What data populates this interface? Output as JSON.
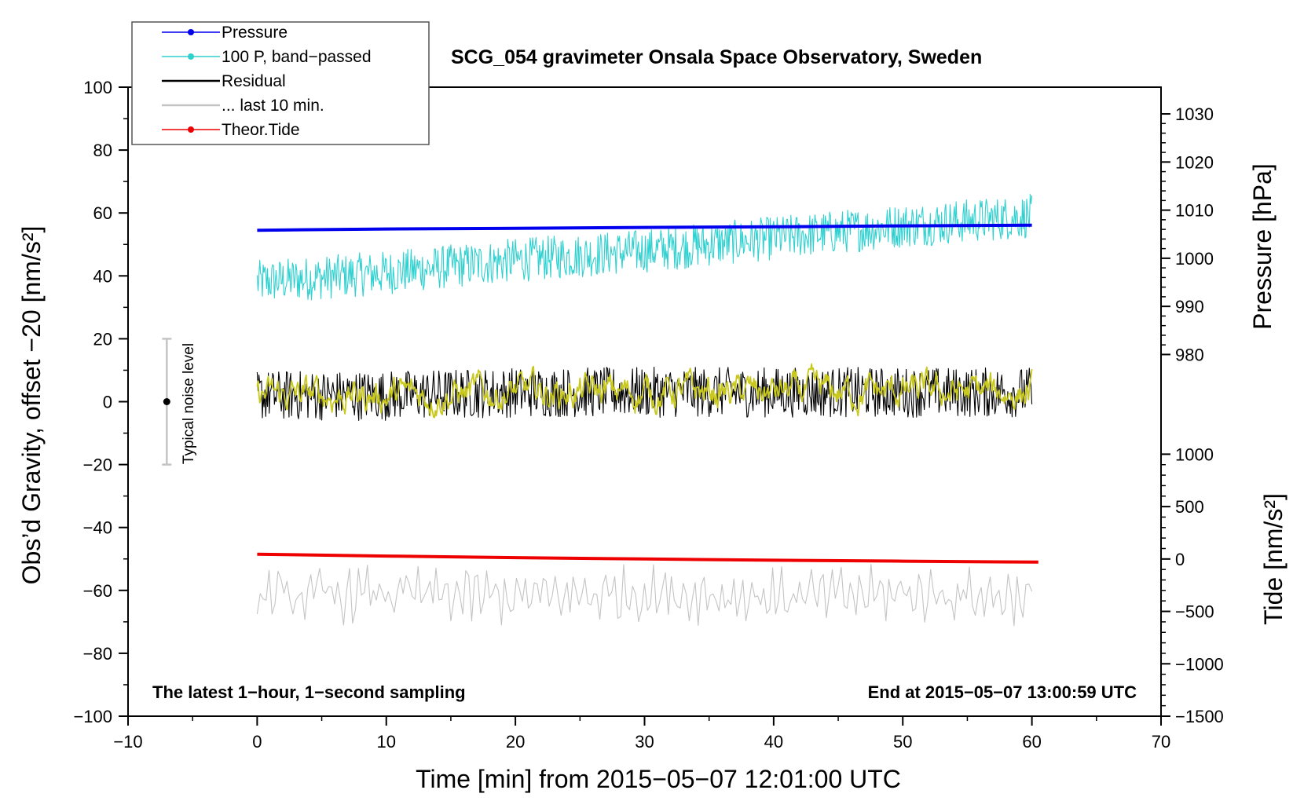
{
  "chart_data": {
    "type": "line",
    "title": "SCG_054 gravimeter Onsala Space Observatory, Sweden",
    "xlabel": "Time [min] from 2015−05−07 12:01:00 UTC",
    "ylabel": "Obs’d Gravity, offset −20 [nm/s²]",
    "xlim": [
      -10,
      70
    ],
    "ylim": [
      -100,
      100
    ],
    "x_ticks": [
      -10,
      0,
      10,
      20,
      30,
      40,
      50,
      60,
      70
    ],
    "x_tick_labels": [
      "−10",
      "0",
      "10",
      "20",
      "30",
      "40",
      "50",
      "60",
      "70"
    ],
    "y_ticks": [
      -100,
      -80,
      -60,
      -40,
      -20,
      0,
      20,
      40,
      60,
      80,
      100
    ],
    "y_tick_labels": [
      "−100",
      "−80",
      "−60",
      "−40",
      "−20",
      "0",
      "20",
      "40",
      "60",
      "80",
      "100"
    ],
    "right_axes": [
      {
        "label": "Pressure [hPa]",
        "tick_values": [
          980,
          990,
          1000,
          1010,
          1020,
          1030
        ],
        "tick_labels": [
          "980",
          "990",
          "1000",
          "1010",
          "1020",
          "1030"
        ],
        "left_scale_ref": [
          [
            980,
            15
          ],
          [
            1030,
            91.5
          ]
        ]
      },
      {
        "label": "Tide [nm/s²]",
        "tick_values": [
          -1500,
          -1000,
          -500,
          0,
          500,
          1000
        ],
        "tick_labels": [
          "−1500",
          "−1000",
          "−500",
          "0",
          "500",
          "1000"
        ],
        "left_scale_ref": [
          [
            -1500,
            -100
          ],
          [
            1000,
            -16.7
          ]
        ]
      }
    ],
    "series": [
      {
        "name": "Pressure",
        "color": "#0000ee",
        "style": "line-dot",
        "x": [
          0,
          10,
          20,
          30,
          40,
          50,
          60
        ],
        "values": [
          54.5,
          54.9,
          55.1,
          55.4,
          55.6,
          55.9,
          56.1
        ]
      },
      {
        "name": "100 P, band−passed",
        "color": "#2fd0d0",
        "style": "line-dot",
        "x": [
          0,
          10,
          20,
          30,
          40,
          50,
          60
        ],
        "values": [
          38,
          41,
          45,
          48,
          52,
          56,
          59
        ],
        "noise_amplitude": 7
      },
      {
        "name": "Residual",
        "color": "#000000",
        "style": "line",
        "x": [
          0,
          10,
          20,
          30,
          40,
          50,
          60
        ],
        "values": [
          2,
          2,
          3,
          3,
          3,
          3,
          3
        ],
        "noise_amplitude": 8
      },
      {
        "name": "... last 10 min.",
        "color": "#c4c4c4",
        "style": "line",
        "x": [
          0,
          10,
          20,
          30,
          40,
          50,
          60
        ],
        "values": [
          -62,
          -61,
          -62,
          -61,
          -62,
          -61,
          -62
        ],
        "noise_amplitude": 7
      },
      {
        "name": "Theor.Tide",
        "color": "#ee0000",
        "style": "line-dot",
        "x": [
          0,
          10,
          20,
          30,
          40,
          50,
          60.5
        ],
        "values": [
          -48.5,
          -49.1,
          -49.6,
          -50.0,
          -50.4,
          -50.7,
          -51.0
        ]
      },
      {
        "name": "",
        "color": "#c8c81e",
        "style": "line",
        "x": [
          0,
          10,
          20,
          30,
          40,
          50,
          60
        ],
        "values": [
          2,
          2,
          3,
          3,
          3,
          3,
          3
        ],
        "noise_amplitude": 3
      }
    ],
    "noise_bar": {
      "label": "Typical noise level",
      "x": -7,
      "center": 0,
      "low": -20,
      "high": 20
    },
    "notes": {
      "left": "The latest 1−hour, 1−second sampling",
      "right": "End at 2015−05−07 13:00:59 UTC"
    },
    "legend_position": "top-left",
    "grid": false
  }
}
